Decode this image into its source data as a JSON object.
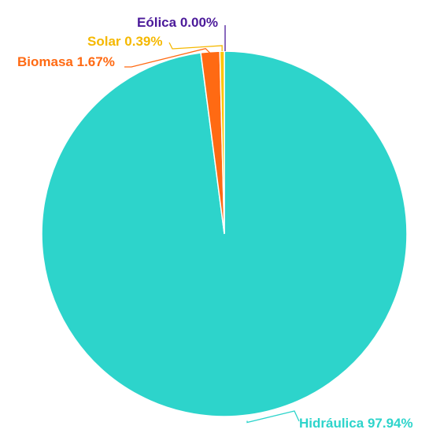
{
  "chart_data": {
    "type": "pie",
    "title": "",
    "slices": [
      {
        "label": "Hidráulica",
        "value_text": "97.94%",
        "value": 97.94,
        "color": "#2dd4cb",
        "label_color": "#2dd4cb"
      },
      {
        "label": "Biomasa",
        "value_text": "1.67%",
        "value": 1.67,
        "color": "#ff6a13",
        "label_color": "#ff6a13"
      },
      {
        "label": "Solar",
        "value_text": "0.39%",
        "value": 0.39,
        "color": "#ffc400",
        "label_color": "#f5b800"
      },
      {
        "label": "Eólica",
        "value_text": "0.00%",
        "value": 0.0,
        "color": "#4b1a9a",
        "label_color": "#4b1a9a"
      }
    ]
  }
}
